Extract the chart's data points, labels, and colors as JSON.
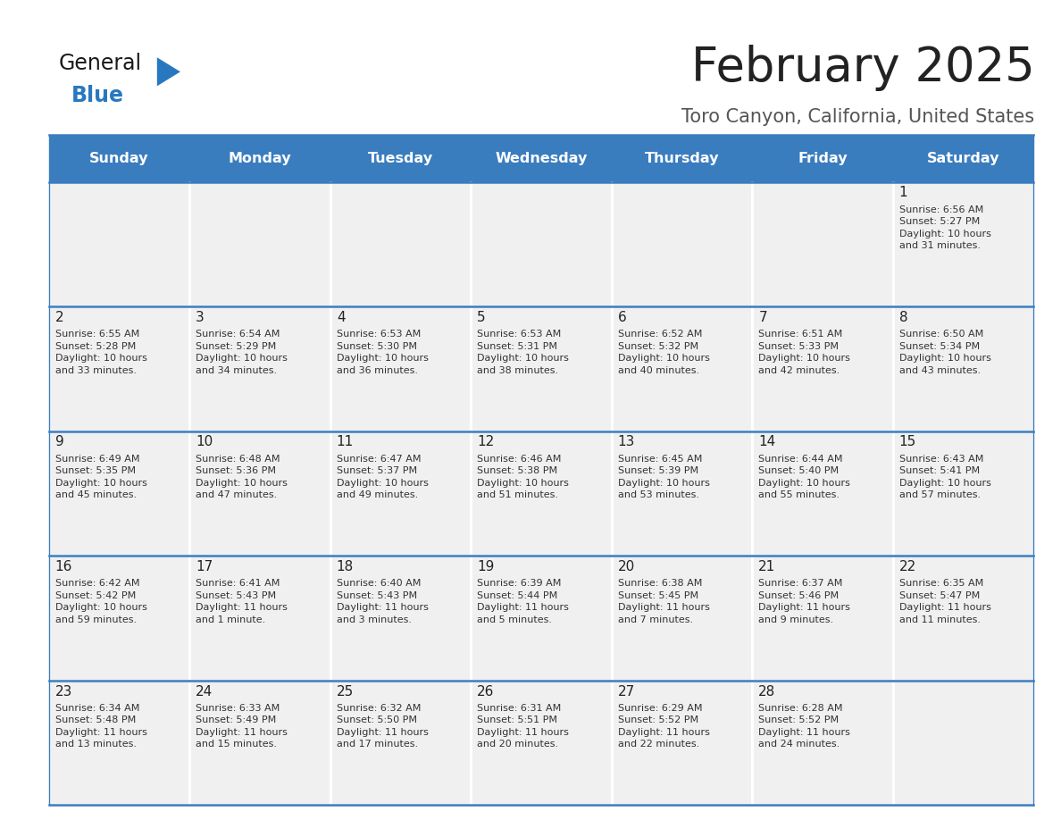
{
  "title": "February 2025",
  "subtitle": "Toro Canyon, California, United States",
  "header_color": "#3a7dbf",
  "header_text_color": "#ffffff",
  "cell_bg": "#f0f0f0",
  "border_color": "#3a7dbf",
  "days_of_week": [
    "Sunday",
    "Monday",
    "Tuesday",
    "Wednesday",
    "Thursday",
    "Friday",
    "Saturday"
  ],
  "title_color": "#222222",
  "subtitle_color": "#555555",
  "day_num_color": "#222222",
  "cell_text_color": "#333333",
  "logo_general_color": "#1a1a1a",
  "logo_blue_color": "#2878c0",
  "weeks": [
    [
      {
        "day": null,
        "info": null
      },
      {
        "day": null,
        "info": null
      },
      {
        "day": null,
        "info": null
      },
      {
        "day": null,
        "info": null
      },
      {
        "day": null,
        "info": null
      },
      {
        "day": null,
        "info": null
      },
      {
        "day": 1,
        "info": "Sunrise: 6:56 AM\nSunset: 5:27 PM\nDaylight: 10 hours\nand 31 minutes."
      }
    ],
    [
      {
        "day": 2,
        "info": "Sunrise: 6:55 AM\nSunset: 5:28 PM\nDaylight: 10 hours\nand 33 minutes."
      },
      {
        "day": 3,
        "info": "Sunrise: 6:54 AM\nSunset: 5:29 PM\nDaylight: 10 hours\nand 34 minutes."
      },
      {
        "day": 4,
        "info": "Sunrise: 6:53 AM\nSunset: 5:30 PM\nDaylight: 10 hours\nand 36 minutes."
      },
      {
        "day": 5,
        "info": "Sunrise: 6:53 AM\nSunset: 5:31 PM\nDaylight: 10 hours\nand 38 minutes."
      },
      {
        "day": 6,
        "info": "Sunrise: 6:52 AM\nSunset: 5:32 PM\nDaylight: 10 hours\nand 40 minutes."
      },
      {
        "day": 7,
        "info": "Sunrise: 6:51 AM\nSunset: 5:33 PM\nDaylight: 10 hours\nand 42 minutes."
      },
      {
        "day": 8,
        "info": "Sunrise: 6:50 AM\nSunset: 5:34 PM\nDaylight: 10 hours\nand 43 minutes."
      }
    ],
    [
      {
        "day": 9,
        "info": "Sunrise: 6:49 AM\nSunset: 5:35 PM\nDaylight: 10 hours\nand 45 minutes."
      },
      {
        "day": 10,
        "info": "Sunrise: 6:48 AM\nSunset: 5:36 PM\nDaylight: 10 hours\nand 47 minutes."
      },
      {
        "day": 11,
        "info": "Sunrise: 6:47 AM\nSunset: 5:37 PM\nDaylight: 10 hours\nand 49 minutes."
      },
      {
        "day": 12,
        "info": "Sunrise: 6:46 AM\nSunset: 5:38 PM\nDaylight: 10 hours\nand 51 minutes."
      },
      {
        "day": 13,
        "info": "Sunrise: 6:45 AM\nSunset: 5:39 PM\nDaylight: 10 hours\nand 53 minutes."
      },
      {
        "day": 14,
        "info": "Sunrise: 6:44 AM\nSunset: 5:40 PM\nDaylight: 10 hours\nand 55 minutes."
      },
      {
        "day": 15,
        "info": "Sunrise: 6:43 AM\nSunset: 5:41 PM\nDaylight: 10 hours\nand 57 minutes."
      }
    ],
    [
      {
        "day": 16,
        "info": "Sunrise: 6:42 AM\nSunset: 5:42 PM\nDaylight: 10 hours\nand 59 minutes."
      },
      {
        "day": 17,
        "info": "Sunrise: 6:41 AM\nSunset: 5:43 PM\nDaylight: 11 hours\nand 1 minute."
      },
      {
        "day": 18,
        "info": "Sunrise: 6:40 AM\nSunset: 5:43 PM\nDaylight: 11 hours\nand 3 minutes."
      },
      {
        "day": 19,
        "info": "Sunrise: 6:39 AM\nSunset: 5:44 PM\nDaylight: 11 hours\nand 5 minutes."
      },
      {
        "day": 20,
        "info": "Sunrise: 6:38 AM\nSunset: 5:45 PM\nDaylight: 11 hours\nand 7 minutes."
      },
      {
        "day": 21,
        "info": "Sunrise: 6:37 AM\nSunset: 5:46 PM\nDaylight: 11 hours\nand 9 minutes."
      },
      {
        "day": 22,
        "info": "Sunrise: 6:35 AM\nSunset: 5:47 PM\nDaylight: 11 hours\nand 11 minutes."
      }
    ],
    [
      {
        "day": 23,
        "info": "Sunrise: 6:34 AM\nSunset: 5:48 PM\nDaylight: 11 hours\nand 13 minutes."
      },
      {
        "day": 24,
        "info": "Sunrise: 6:33 AM\nSunset: 5:49 PM\nDaylight: 11 hours\nand 15 minutes."
      },
      {
        "day": 25,
        "info": "Sunrise: 6:32 AM\nSunset: 5:50 PM\nDaylight: 11 hours\nand 17 minutes."
      },
      {
        "day": 26,
        "info": "Sunrise: 6:31 AM\nSunset: 5:51 PM\nDaylight: 11 hours\nand 20 minutes."
      },
      {
        "day": 27,
        "info": "Sunrise: 6:29 AM\nSunset: 5:52 PM\nDaylight: 11 hours\nand 22 minutes."
      },
      {
        "day": 28,
        "info": "Sunrise: 6:28 AM\nSunset: 5:52 PM\nDaylight: 11 hours\nand 24 minutes."
      },
      {
        "day": null,
        "info": null
      }
    ]
  ],
  "fig_width": 11.88,
  "fig_height": 9.18,
  "dpi": 100
}
